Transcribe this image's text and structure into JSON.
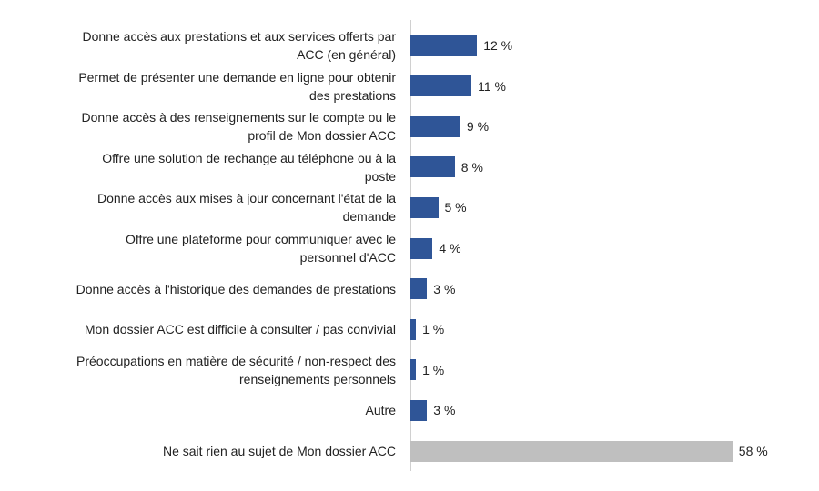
{
  "chart_data": {
    "type": "bar",
    "orientation": "horizontal",
    "title": "",
    "xlabel": "",
    "ylabel": "",
    "xlim": [
      0,
      60
    ],
    "grid": false,
    "colors": {
      "primary": "#2F5597",
      "secondary": "#BFBFBF"
    },
    "categories": [
      [
        "Donne accès aux prestations et aux services offerts par",
        "ACC (en général)"
      ],
      [
        "Permet de présenter une demande en ligne pour obtenir",
        "des prestations"
      ],
      [
        "Donne accès à des renseignements sur le compte ou le",
        "profil de Mon dossier ACC"
      ],
      [
        "Offre une solution de rechange au téléphone ou à la",
        "poste"
      ],
      [
        "Donne accès aux mises à jour concernant l'état de la",
        "demande"
      ],
      [
        "Offre une plateforme pour communiquer avec le",
        "personnel d'ACC"
      ],
      [
        "Donne accès à l'historique des demandes de prestations"
      ],
      [
        "Mon dossier ACC est difficile à consulter / pas convivial"
      ],
      [
        "Préoccupations en matière de sécurité / non-respect des",
        "renseignements personnels"
      ],
      [
        "Autre"
      ],
      [
        "Ne sait rien au sujet de Mon dossier ACC"
      ]
    ],
    "values": [
      12,
      11,
      9,
      8,
      5,
      4,
      3,
      1,
      1,
      3,
      58
    ],
    "value_labels": [
      "12 %",
      "11 %",
      "9 %",
      "8 %",
      "5 %",
      "4 %",
      "3 %",
      "1 %",
      "1 %",
      "3 %",
      "58 %"
    ],
    "highlight": [
      false,
      false,
      false,
      false,
      false,
      false,
      false,
      false,
      false,
      false,
      true
    ]
  }
}
